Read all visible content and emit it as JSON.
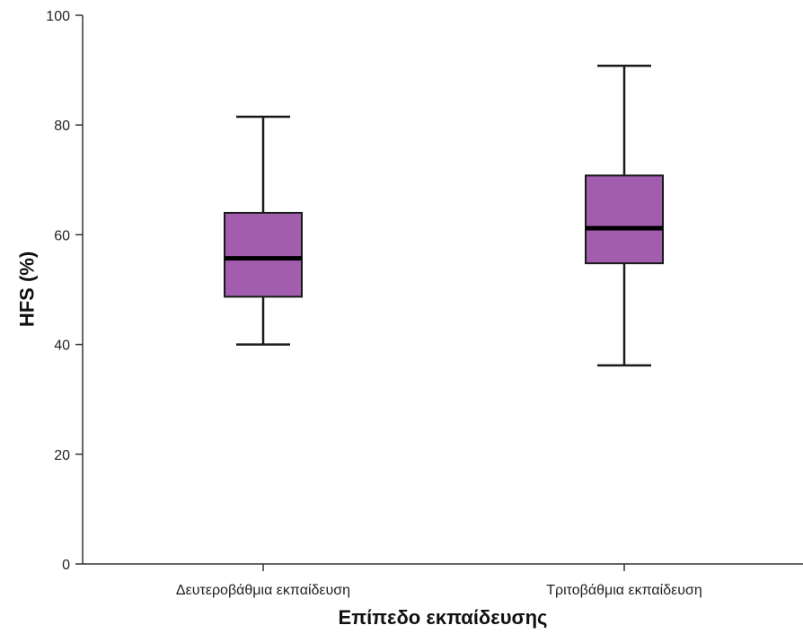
{
  "chart_data": {
    "type": "boxplot",
    "title": "",
    "xlabel": "Επίπεδο εκπαίδευσης",
    "ylabel": "HFS (%)",
    "ylim": [
      0,
      100
    ],
    "yticks": [
      0,
      20,
      40,
      60,
      80,
      100
    ],
    "categories": [
      "Δευτεροβάθμια εκπαίδευση",
      "Τριτοβάθμια εκπαίδευση"
    ],
    "boxes": [
      {
        "min": 40,
        "q1": 48.7,
        "median": 55.7,
        "q3": 64,
        "max": 81.5
      },
      {
        "min": 36.2,
        "q1": 54.8,
        "median": 61.2,
        "q3": 70.8,
        "max": 90.8
      }
    ],
    "grid": false,
    "colors": {
      "box_fill": "#A35DAE",
      "box_stroke": "#1a1a1a",
      "median": "#000000",
      "axis": "#333333"
    }
  }
}
